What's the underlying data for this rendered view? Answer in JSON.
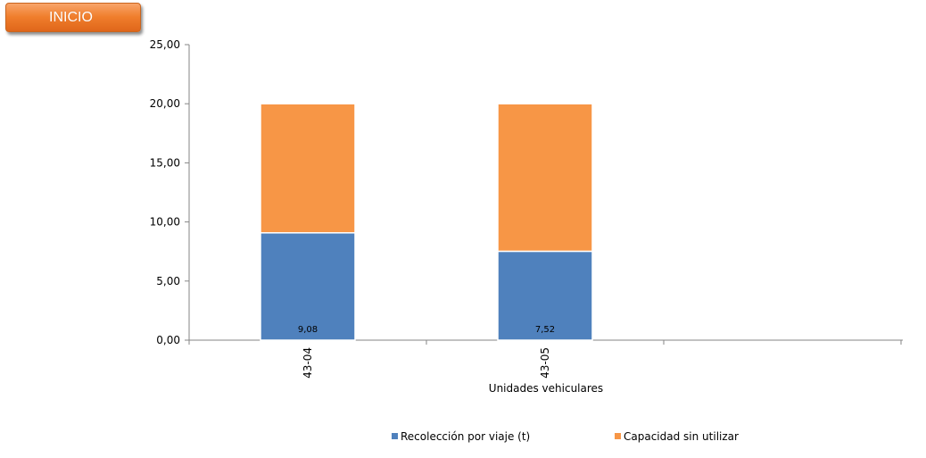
{
  "button": {
    "label": "INICIO"
  },
  "chart_data": {
    "type": "bar",
    "stacked": true,
    "categories": [
      "43-04",
      "43-05"
    ],
    "series": [
      {
        "name": "Recolección por viaje (t)",
        "values": [
          9.08,
          7.52
        ],
        "value_labels": [
          "9,08",
          "7,52"
        ],
        "color": "#4f81bd"
      },
      {
        "name": "Capacidad sin utilizar",
        "values": [
          10.92,
          12.48
        ],
        "color": "#f79646"
      }
    ],
    "title": "",
    "xlabel": "Unidades vehiculares",
    "ylabel": "",
    "ylim": [
      0,
      25
    ],
    "yticks": [
      0,
      5,
      10,
      15,
      20,
      25
    ],
    "ytick_labels": [
      "0,00",
      "5,00",
      "10,00",
      "15,00",
      "20,00",
      "25,00"
    ],
    "grid": false,
    "legend_position": "bottom"
  }
}
